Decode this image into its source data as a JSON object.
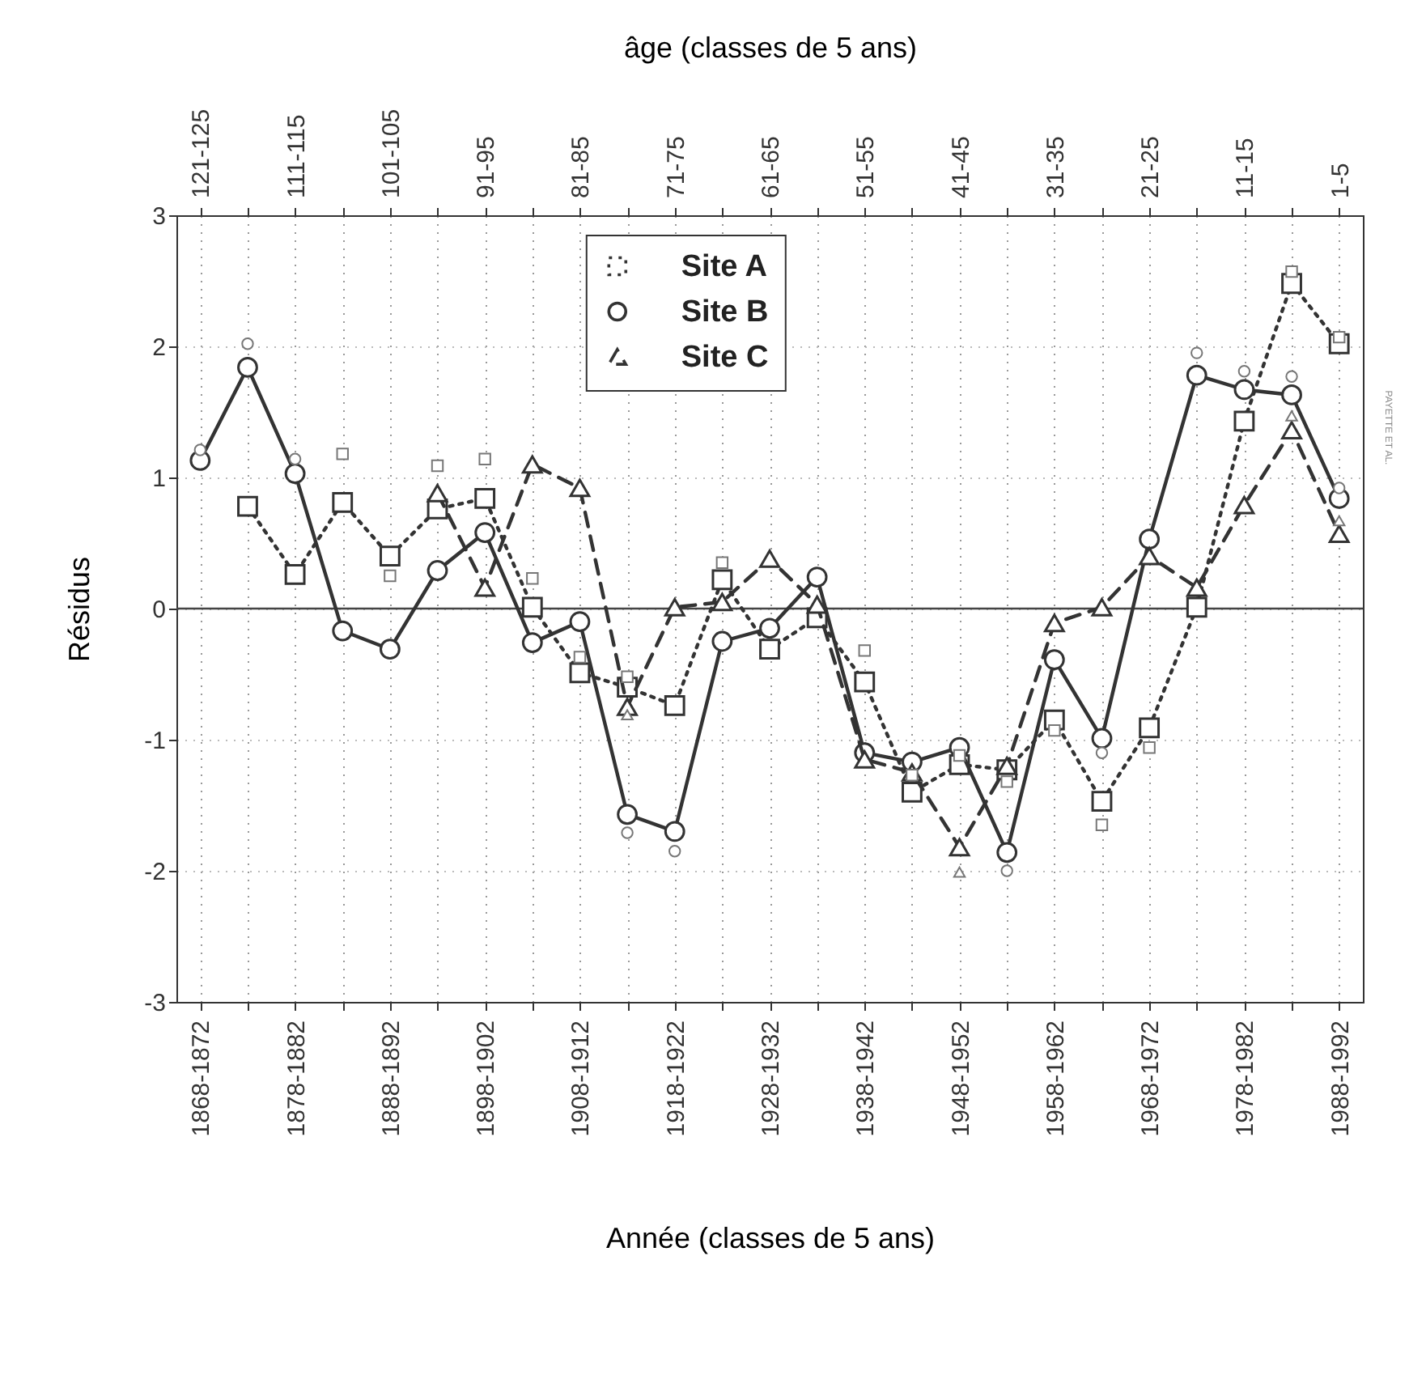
{
  "chart_data": {
    "type": "line",
    "xlabel": "Année (classes de 5 ans)",
    "x2label": "âge (classes de 5 ans)",
    "ylabel": "Résidus",
    "categories": [
      "1868-1872",
      null,
      "1878-1882",
      null,
      "1888-1892",
      null,
      "1898-1902",
      null,
      "1908-1912",
      null,
      "1918-1922",
      null,
      "1928-1932",
      null,
      "1938-1942",
      null,
      "1948-1952",
      null,
      "1958-1962",
      null,
      "1968-1972",
      null,
      "1978-1982",
      null,
      "1988-1992"
    ],
    "annotations": [
      {
        "text": "121-125",
        "x": "1868-1872"
      },
      {
        "text": "111-115",
        "x": "1878-1882"
      },
      {
        "text": "101-105",
        "x": "1888-1892"
      },
      {
        "text": "91-95",
        "x": "1898-1902"
      },
      {
        "text": "81-85",
        "x": "1908-1912"
      },
      {
        "text": "71-75",
        "x": "1918-1922"
      },
      {
        "text": "61-65",
        "x": "1928-1932"
      },
      {
        "text": "51-55",
        "x": "1938-1942"
      },
      {
        "text": "41-45",
        "x": "1948-1952"
      },
      {
        "text": "31-35",
        "x": "1958-1962"
      },
      {
        "text": "21-25",
        "x": "1968-1972"
      },
      {
        "text": "11-15",
        "x": "1978-1982"
      },
      {
        "text": "1-5",
        "x": "1988-1992"
      },
      "PAYETTE ET AL."
    ],
    "ylim": [
      -3,
      3
    ],
    "yticks": [
      -3,
      -2,
      -1,
      0,
      1,
      2,
      3
    ],
    "grid": true,
    "legend": "top",
    "ref_lines": [
      {
        "axis": "y",
        "value": 0
      }
    ],
    "series": [
      {
        "name": "Site A",
        "color": "#333333",
        "marker": "square",
        "line_style": "dotted",
        "values": [
          null,
          0.78,
          0.26,
          0.81,
          0.4,
          0.76,
          0.84,
          0.01,
          -0.49,
          -0.6,
          -0.74,
          0.22,
          -0.31,
          -0.07,
          -0.56,
          -1.4,
          -1.19,
          -1.23,
          -0.85,
          -1.47,
          -0.91,
          0.01,
          1.43,
          2.48,
          2.02
        ]
      },
      {
        "name": "Site B",
        "color": "#333333",
        "marker": "circle",
        "line_style": "solid",
        "values": [
          1.13,
          1.84,
          1.03,
          -0.17,
          -0.31,
          0.29,
          0.58,
          -0.26,
          -0.1,
          -1.57,
          -1.7,
          -0.25,
          -0.15,
          0.24,
          -1.1,
          -1.17,
          -1.06,
          -1.86,
          -0.39,
          -0.99,
          0.53,
          1.78,
          1.67,
          1.63,
          0.84
        ]
      },
      {
        "name": "Site C",
        "color": "#333333",
        "marker": "triangle",
        "line_style": "dashed",
        "values": [
          null,
          null,
          null,
          null,
          null,
          0.88,
          0.16,
          1.1,
          0.92,
          -0.75,
          0.01,
          0.05,
          0.38,
          0.03,
          -1.15,
          -1.25,
          -1.82,
          -1.2,
          -0.11,
          0.01,
          0.4,
          0.16,
          0.79,
          1.36,
          0.57
        ]
      },
      {
        "color": "#777777",
        "type": "scatter",
        "marker": "square",
        "values": [
          null,
          null,
          null,
          1.18,
          0.25,
          1.09,
          1.14,
          0.23,
          -0.37,
          -0.52,
          null,
          0.35,
          null,
          null,
          -0.32,
          -1.27,
          -1.12,
          -1.32,
          -0.93,
          -1.65,
          -1.06,
          null,
          null,
          2.57,
          2.07
        ]
      },
      {
        "color": "#777777",
        "type": "scatter",
        "marker": "circle",
        "values": [
          1.21,
          2.02,
          1.14,
          null,
          null,
          null,
          null,
          null,
          null,
          -1.71,
          -1.85,
          null,
          null,
          null,
          null,
          null,
          null,
          -2.0,
          null,
          -1.1,
          null,
          1.95,
          1.81,
          1.77,
          0.92
        ]
      },
      {
        "color": "#777777",
        "type": "scatter",
        "marker": "triangle",
        "values": [
          null,
          null,
          null,
          null,
          null,
          null,
          null,
          null,
          null,
          -0.81,
          null,
          null,
          null,
          null,
          null,
          null,
          -2.01,
          null,
          null,
          null,
          null,
          null,
          null,
          1.47,
          0.67
        ]
      }
    ]
  }
}
